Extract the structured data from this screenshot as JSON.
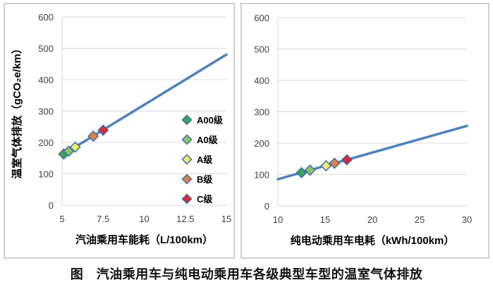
{
  "caption": "图　汽油乘用车与纯电动乘用车各级典型车型的温室气体排放",
  "colors": {
    "line": "#4F81BD",
    "marker_border": "#3E6CB0",
    "grid": "#D9D9D9",
    "panel_border": "#CFCFCF",
    "tick_text": "#3F3F3F",
    "label_text": "#000000"
  },
  "legend": [
    {
      "label": "A00级",
      "color": "#3CA650"
    },
    {
      "label": "A0级",
      "color": "#8FC665"
    },
    {
      "label": "A级",
      "color": "#EFED66"
    },
    {
      "label": "B级",
      "color": "#E0813F"
    },
    {
      "label": "C级",
      "color": "#E2262D"
    }
  ],
  "chart_data": [
    {
      "type": "line",
      "title": "",
      "xlabel": "汽油乘用车能耗（L/100km）",
      "ylabel": "温室气体排放（gCO₂e/km）",
      "xlim": [
        5,
        15
      ],
      "ylim": [
        0,
        600
      ],
      "xticks": [
        5,
        7.5,
        10,
        12.5,
        15
      ],
      "yticks": [
        0,
        100,
        200,
        300,
        400,
        500,
        600
      ],
      "grid": true,
      "legend_visible": true,
      "legend_position": "inside-right",
      "marker": "diamond",
      "line": {
        "x": [
          5,
          15
        ],
        "y": [
          160,
          480
        ]
      },
      "points": [
        {
          "label": "A00级",
          "x": 5.1,
          "y": 163
        },
        {
          "label": "A0级",
          "x": 5.4,
          "y": 172
        },
        {
          "label": "A级",
          "x": 5.8,
          "y": 185
        },
        {
          "label": "B级",
          "x": 6.9,
          "y": 220
        },
        {
          "label": "C级",
          "x": 7.5,
          "y": 239
        }
      ]
    },
    {
      "type": "line",
      "title": "",
      "xlabel": "纯电动乘用车电耗（kWh/100km）",
      "ylabel": "",
      "xlim": [
        10,
        30
      ],
      "ylim": [
        0,
        600
      ],
      "xticks": [
        10,
        15,
        20,
        25,
        30
      ],
      "yticks": [
        0,
        100,
        200,
        300,
        400,
        500,
        600
      ],
      "grid": true,
      "legend_visible": false,
      "marker": "diamond",
      "line": {
        "x": [
          10,
          30
        ],
        "y": [
          85,
          255
        ]
      },
      "points": [
        {
          "label": "A00级",
          "x": 12.5,
          "y": 106
        },
        {
          "label": "A0级",
          "x": 13.4,
          "y": 114
        },
        {
          "label": "A级",
          "x": 15.1,
          "y": 128
        },
        {
          "label": "B级",
          "x": 16.0,
          "y": 136
        },
        {
          "label": "C级",
          "x": 17.3,
          "y": 147
        }
      ]
    }
  ]
}
